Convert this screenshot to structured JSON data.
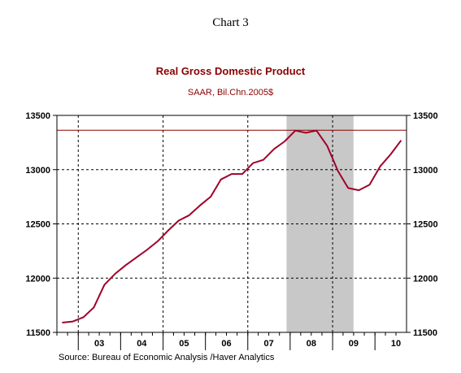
{
  "page_title": "Chart 3",
  "chart_data": {
    "type": "line",
    "title": "Real Gross Domestic Product",
    "subtitle": "SAAR, Bil.Chn.2005$",
    "source": "Source:  Bureau of Economic Analysis /Haver Analytics",
    "ylim": [
      11500,
      13500
    ],
    "yticks": [
      11500,
      12000,
      12500,
      13000,
      13500
    ],
    "ytick_labels": [
      "11500",
      "12000",
      "12500",
      "13000",
      "13500"
    ],
    "xlim": [
      "2002-07-01",
      "2010-09-30"
    ],
    "year_labels": [
      "03",
      "04",
      "05",
      "06",
      "07",
      "08",
      "09",
      "10"
    ],
    "year_label_dates": [
      "2003-07-01",
      "2004-07-01",
      "2005-07-01",
      "2006-07-01",
      "2007-07-01",
      "2008-07-01",
      "2009-07-01",
      "2010-07-01"
    ],
    "year_boundaries": [
      "2003-01-01",
      "2004-01-01",
      "2005-01-01",
      "2006-01-01",
      "2007-01-01",
      "2008-01-01",
      "2009-01-01",
      "2010-01-01"
    ],
    "vertical_gridlines": [
      "2003-01-01",
      "2005-01-01",
      "2007-01-01",
      "2009-01-01"
    ],
    "horizontal_gridlines": [
      12000,
      12500,
      13000
    ],
    "recession_shading": {
      "start": "2007-12-01",
      "end": "2009-06-30",
      "color": "#c8c8c8"
    },
    "reference_line": {
      "value": 13363,
      "color": "#8b0000"
    },
    "grid": true,
    "series": [
      {
        "color": "#a0002a",
        "x": [
          "2002-08-15",
          "2002-11-15",
          "2003-02-15",
          "2003-05-15",
          "2003-08-15",
          "2003-11-15",
          "2004-02-15",
          "2004-05-15",
          "2004-08-15",
          "2004-11-15",
          "2005-02-15",
          "2005-05-15",
          "2005-08-15",
          "2005-11-15",
          "2006-02-15",
          "2006-05-15",
          "2006-08-15",
          "2006-11-15",
          "2007-02-15",
          "2007-05-15",
          "2007-08-15",
          "2007-11-15",
          "2008-02-15",
          "2008-05-15",
          "2008-08-15",
          "2008-11-15",
          "2009-02-15",
          "2009-05-15",
          "2009-08-15",
          "2009-11-15",
          "2010-02-15",
          "2010-05-15",
          "2010-08-15"
        ],
        "values": [
          11590,
          11600,
          11640,
          11730,
          11940,
          12040,
          12120,
          12190,
          12260,
          12340,
          12440,
          12530,
          12580,
          12670,
          12750,
          12910,
          12960,
          12960,
          13060,
          13090,
          13190,
          13260,
          13360,
          13340,
          13360,
          13220,
          12990,
          12830,
          12810,
          12860,
          13030,
          13140,
          13270
        ]
      }
    ]
  }
}
